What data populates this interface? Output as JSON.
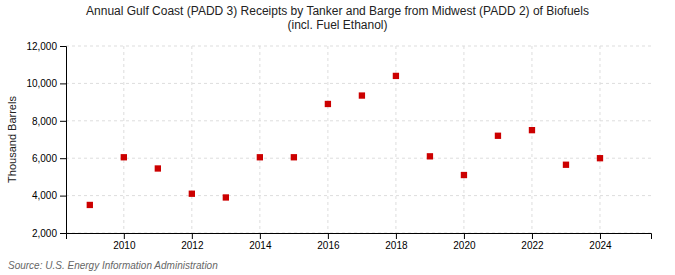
{
  "chart_data": {
    "type": "scatter",
    "title": "Annual Gulf Coast (PADD 3) Receipts by Tanker and Barge from Midwest (PADD 2) of Biofuels\n(incl. Fuel Ethanol)",
    "y_label": "Thousand Barrels",
    "annotations": [
      "Source: U.S. Energy Information Administration"
    ],
    "x": [
      2009,
      2010,
      2011,
      2012,
      2013,
      2014,
      2015,
      2016,
      2017,
      2018,
      2019,
      2020,
      2021,
      2022,
      2023,
      2024
    ],
    "values": [
      3500,
      6050,
      5450,
      4100,
      3900,
      6050,
      6050,
      8900,
      9350,
      10400,
      6100,
      5100,
      7200,
      7500,
      5650,
      6000
    ],
    "color": "#CC0000",
    "marker": "square",
    "xlim": [
      2008.3,
      2025.5
    ],
    "xticks": [
      2010,
      2012,
      2014,
      2016,
      2018,
      2020,
      2022,
      2024
    ],
    "ylim": [
      2000,
      12000
    ],
    "yticks": [
      {
        "value": 2000,
        "label": "2,000"
      },
      {
        "value": 4000,
        "label": "4,000"
      },
      {
        "value": 6000,
        "label": "6,000"
      },
      {
        "value": 8000,
        "label": "8,000"
      },
      {
        "value": 10000,
        "label": "10,000"
      },
      {
        "value": 12000,
        "label": "12,000"
      }
    ],
    "grid": true
  }
}
